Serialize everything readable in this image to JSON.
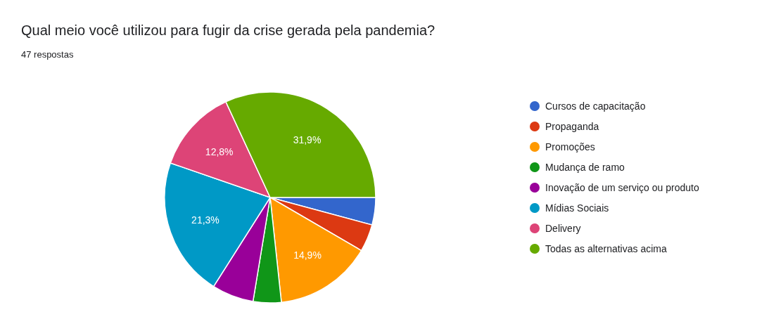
{
  "chart_data": {
    "type": "pie",
    "title": "Qual meio você utilizou para fugir da crise gerada pela pandemia?",
    "subtitle": "47 respostas",
    "categories": [
      "Cursos de capacitação",
      "Propaganda",
      "Promoções",
      "Mudança de ramo",
      "Inovação de um serviço ou produto",
      "Mídias Sociais",
      "Delivery",
      "Todas as alternativas acima"
    ],
    "values": [
      4.2,
      4.2,
      14.9,
      4.3,
      6.4,
      21.3,
      12.8,
      31.9
    ],
    "value_labels": [
      null,
      null,
      "14,9%",
      null,
      null,
      "21,3%",
      "12,8%",
      "31,9%"
    ],
    "colors": [
      "#3366cc",
      "#dc3912",
      "#ff9900",
      "#109618",
      "#990099",
      "#0099c6",
      "#dd4477",
      "#66aa00"
    ],
    "legend": "right"
  }
}
